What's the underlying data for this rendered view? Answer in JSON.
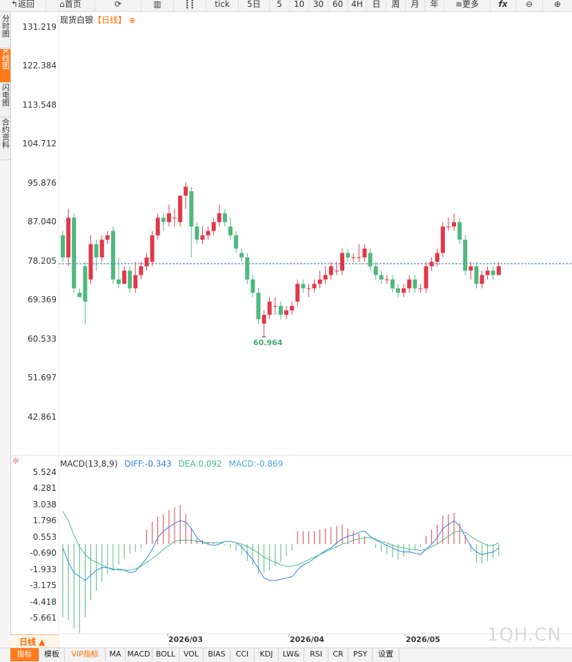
{
  "toolbar": {
    "back_label": "返回",
    "home_label": "首页",
    "refresh_icon": "refresh-icon",
    "tick_label": "tick",
    "five_day_label": "5日",
    "min5_label": "5",
    "min10_label": "10",
    "min30_label": "30",
    "min60_label": "60",
    "h4_label": "4H",
    "day_label": "日",
    "week_label": "周",
    "month_label": "月",
    "year_label": "年",
    "more_label": "更多",
    "fx_label": "fx"
  },
  "sidebar": {
    "tabs": [
      {
        "label": "分时图"
      },
      {
        "label": "K线图"
      },
      {
        "label": "闪电图"
      },
      {
        "label": "合约资料"
      }
    ]
  },
  "chart": {
    "symbol": "现货白银",
    "period_tag": "【日线】",
    "low_label": "60.964",
    "price_ticks": [
      "131.219",
      "122.384",
      "113.548",
      "104.712",
      "95.876",
      "87.040",
      "78.205",
      "69.369",
      "60.533",
      "51.697",
      "42.861"
    ]
  },
  "macd": {
    "name": "MACD(13,8,9)",
    "diff_label": "DIFF:-0.343",
    "dea_label": "DEA:0.092",
    "macd_label": "MACD:-0.869",
    "ticks": [
      "5.524",
      "4.281",
      "3.038",
      "1.796",
      "0.553",
      "-0.690",
      "-1.933",
      "-3.175",
      "-4.418",
      "-5.661"
    ]
  },
  "xaxis": {
    "labels": [
      "2026/03",
      "2026/04",
      "2026/05"
    ],
    "period_label": "日线 ▲"
  },
  "bottom_bar": {
    "items": [
      "指标",
      "模板",
      "VIP指标",
      "MA",
      "MACD",
      "BOLL",
      "VOL",
      "BIAS",
      "CCI",
      "KDJ",
      "LW&",
      "RSI",
      "CR",
      "PSY",
      "设置"
    ]
  },
  "watermark": "1QH.CN",
  "colors": {
    "up": "#e0384a",
    "down": "#4fb87e",
    "accent": "#ff7a1a",
    "diff_line": "#2f7fe0",
    "dea_line": "#3fb98a",
    "current_price_line": "#2d6ba8"
  },
  "chart_data": {
    "type": "candlestick",
    "series_note": "",
    "price_ylim": [
      42.861,
      131.219
    ],
    "current_price": 78.2,
    "candles": [
      [
        84,
        79,
        85,
        78
      ],
      [
        79,
        88,
        90,
        77
      ],
      [
        88,
        72,
        89,
        71
      ],
      [
        71,
        70,
        72,
        70
      ],
      [
        77,
        69,
        78,
        64
      ],
      [
        74,
        82,
        84,
        73
      ],
      [
        82,
        79,
        83,
        76
      ],
      [
        79,
        83,
        84,
        78
      ],
      [
        83,
        84,
        85,
        82
      ],
      [
        85,
        74,
        86,
        73
      ],
      [
        74,
        73,
        79,
        72
      ],
      [
        73,
        76,
        77,
        75
      ],
      [
        76,
        72,
        77,
        71
      ],
      [
        72,
        75,
        78,
        71
      ],
      [
        75,
        77,
        78,
        74
      ],
      [
        77,
        79,
        80,
        76
      ],
      [
        78,
        84,
        85,
        77
      ],
      [
        84,
        88,
        89,
        83
      ],
      [
        88,
        87,
        89,
        85
      ],
      [
        87,
        89,
        91,
        86
      ],
      [
        88,
        88,
        90,
        86
      ],
      [
        87,
        93,
        93,
        86
      ],
      [
        93,
        95,
        96,
        90
      ],
      [
        94,
        86,
        95,
        79
      ],
      [
        86,
        83,
        87,
        82
      ],
      [
        83,
        84,
        86,
        82
      ],
      [
        84,
        85,
        86,
        83
      ],
      [
        85,
        87,
        88,
        84
      ],
      [
        87,
        89,
        91,
        86
      ],
      [
        89,
        87,
        90,
        86
      ],
      [
        86,
        84,
        88,
        83
      ],
      [
        84,
        81,
        85,
        80
      ],
      [
        80,
        79,
        81,
        78
      ],
      [
        79,
        74,
        80,
        73
      ],
      [
        74,
        71,
        75,
        70
      ],
      [
        71,
        65,
        72,
        64
      ],
      [
        64,
        66,
        67,
        61
      ],
      [
        66,
        69,
        70,
        65
      ],
      [
        68,
        68,
        70,
        66
      ],
      [
        68,
        66,
        69,
        65
      ],
      [
        66,
        67,
        68,
        65
      ],
      [
        67,
        68,
        69,
        66
      ],
      [
        69,
        73,
        74,
        68
      ],
      [
        73,
        72,
        74,
        71
      ],
      [
        72,
        72,
        73,
        70
      ],
      [
        72,
        73,
        74,
        71
      ],
      [
        73,
        74,
        76,
        72
      ],
      [
        74,
        75,
        77,
        73
      ],
      [
        75,
        77,
        78,
        74
      ],
      [
        76,
        76,
        78,
        75
      ],
      [
        76,
        80,
        81,
        75
      ],
      [
        80,
        79,
        81,
        78
      ],
      [
        79,
        79,
        80,
        78
      ],
      [
        79,
        79,
        82,
        78
      ],
      [
        79,
        81,
        82,
        78
      ],
      [
        80,
        77,
        81,
        76
      ],
      [
        77,
        75,
        78,
        74
      ],
      [
        75,
        74,
        76,
        73
      ],
      [
        74,
        74,
        75,
        73
      ],
      [
        74,
        72,
        75,
        71
      ],
      [
        72,
        71,
        73,
        70
      ],
      [
        71,
        72,
        73,
        70
      ],
      [
        72,
        74,
        75,
        71
      ],
      [
        74,
        72,
        75,
        71
      ],
      [
        72,
        72,
        73,
        71
      ],
      [
        72,
        77,
        78,
        71
      ],
      [
        77,
        78,
        79,
        76
      ],
      [
        78,
        80,
        81,
        77
      ],
      [
        80,
        86,
        87,
        79
      ],
      [
        86,
        86,
        88,
        85
      ],
      [
        86,
        87,
        89,
        85
      ],
      [
        87,
        83,
        88,
        82
      ],
      [
        83,
        76,
        84,
        75
      ],
      [
        76,
        77,
        78,
        74
      ],
      [
        77,
        73,
        78,
        72
      ],
      [
        73,
        75,
        76,
        72
      ],
      [
        75,
        76,
        77,
        74
      ],
      [
        76,
        75,
        77,
        74
      ],
      [
        75,
        77,
        78,
        75
      ]
    ],
    "macd_ylim": [
      -6.9,
      6.2
    ],
    "macd_hist": [
      -5.6,
      -5.8,
      -6.5,
      -6.8,
      -5.6,
      -4.3,
      -3.6,
      -2.9,
      -2.3,
      -2.0,
      -1.6,
      -1.1,
      -0.7,
      -0.6,
      -0.3,
      1.1,
      1.7,
      2.1,
      2.3,
      2.6,
      2.8,
      3.0,
      2.3,
      1.2,
      0.4,
      0.3,
      0.2,
      0.1,
      0.0,
      -0.1,
      -0.3,
      -0.5,
      -0.8,
      -1.3,
      -1.6,
      -2.3,
      -2.2,
      -2.0,
      -1.7,
      -1.4,
      -0.9,
      -0.5,
      1.0,
      1.0,
      1.0,
      1.0,
      1.1,
      1.2,
      1.3,
      1.4,
      1.5,
      1.2,
      1.0,
      0.8,
      0.6,
      0.0,
      -0.3,
      -0.6,
      -0.8,
      -1.0,
      -1.2,
      -1.0,
      -0.7,
      -0.5,
      -0.2,
      0.6,
      1.1,
      1.5,
      2.2,
      2.3,
      2.4,
      1.6,
      0.7,
      -0.6,
      -1.4,
      -1.5,
      -1.3,
      -1.1,
      -0.9
    ],
    "diff": [
      -0.3,
      -1.4,
      -2.2,
      -2.5,
      -2.8,
      -2.4,
      -2.0,
      -1.8,
      -1.8,
      -2.0,
      -1.9,
      -2.0,
      -2.2,
      -2.1,
      -1.6,
      -1.1,
      -0.4,
      0.5,
      1.0,
      1.3,
      1.6,
      1.8,
      1.7,
      1.2,
      0.5,
      0.1,
      0.0,
      -0.1,
      0.0,
      0.2,
      0.2,
      0.1,
      -0.2,
      -0.7,
      -1.2,
      -1.9,
      -2.6,
      -2.8,
      -2.8,
      -2.7,
      -2.6,
      -2.5,
      -2.0,
      -1.6,
      -1.4,
      -1.1,
      -0.8,
      -0.5,
      -0.3,
      0.1,
      0.4,
      0.6,
      0.7,
      0.9,
      1.0,
      0.6,
      0.3,
      0.1,
      -0.1,
      -0.3,
      -0.5,
      -0.6,
      -0.6,
      -0.7,
      -0.8,
      -0.4,
      0.0,
      0.5,
      1.2,
      1.5,
      1.8,
      1.4,
      0.6,
      -0.2,
      -0.6,
      -0.8,
      -0.7,
      -0.6,
      -0.3
    ],
    "dea": [
      2.5,
      1.8,
      0.7,
      -0.2,
      -0.8,
      -1.2,
      -1.4,
      -1.6,
      -1.8,
      -1.9,
      -2.0,
      -2.0,
      -2.0,
      -1.9,
      -1.7,
      -1.4,
      -1.1,
      -0.8,
      -0.4,
      -0.1,
      0.2,
      0.3,
      0.3,
      0.3,
      0.2,
      0.2,
      0.1,
      0.1,
      0.1,
      0.2,
      0.2,
      0.1,
      0.0,
      -0.2,
      -0.4,
      -0.7,
      -1.0,
      -1.2,
      -1.4,
      -1.6,
      -1.7,
      -1.7,
      -1.6,
      -1.4,
      -1.2,
      -1.0,
      -0.8,
      -0.6,
      -0.4,
      -0.2,
      0.0,
      0.1,
      0.3,
      0.4,
      0.5,
      0.5,
      0.4,
      0.2,
      0.1,
      -0.1,
      -0.2,
      -0.3,
      -0.4,
      -0.4,
      -0.5,
      -0.4,
      -0.2,
      0.0,
      0.3,
      0.6,
      0.9,
      1.0,
      0.9,
      0.6,
      0.3,
      0.1,
      -0.1,
      -0.1,
      0.1
    ]
  }
}
